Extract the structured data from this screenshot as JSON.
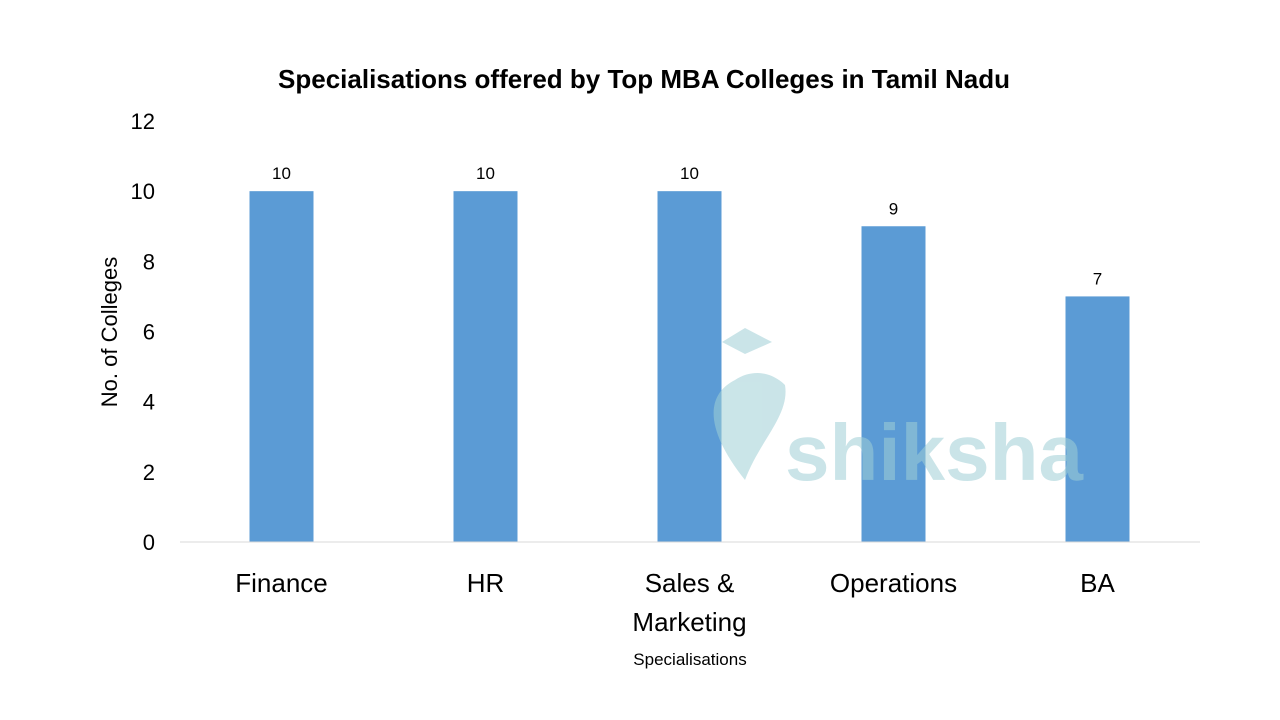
{
  "chart_data": {
    "type": "bar",
    "title": "Specialisations offered by Top MBA Colleges in Tamil Nadu",
    "xlabel": "Specialisations",
    "ylabel": "No. of Colleges",
    "categories": [
      [
        "Finance"
      ],
      [
        "HR"
      ],
      [
        "Sales &",
        "Marketing"
      ],
      [
        "Operations"
      ],
      [
        "BA"
      ]
    ],
    "values": [
      10,
      10,
      10,
      9,
      7
    ],
    "data_labels": [
      "10",
      "10",
      "10",
      "9",
      "7"
    ],
    "ylim": [
      0,
      12
    ],
    "yticks": [
      "0",
      "2",
      "4",
      "6",
      "8",
      "10",
      "12"
    ],
    "grid": false,
    "legend": "none",
    "bar_color": "#5B9BD5"
  },
  "watermark": {
    "text": "shiksha",
    "color": "#9fcfd6"
  }
}
